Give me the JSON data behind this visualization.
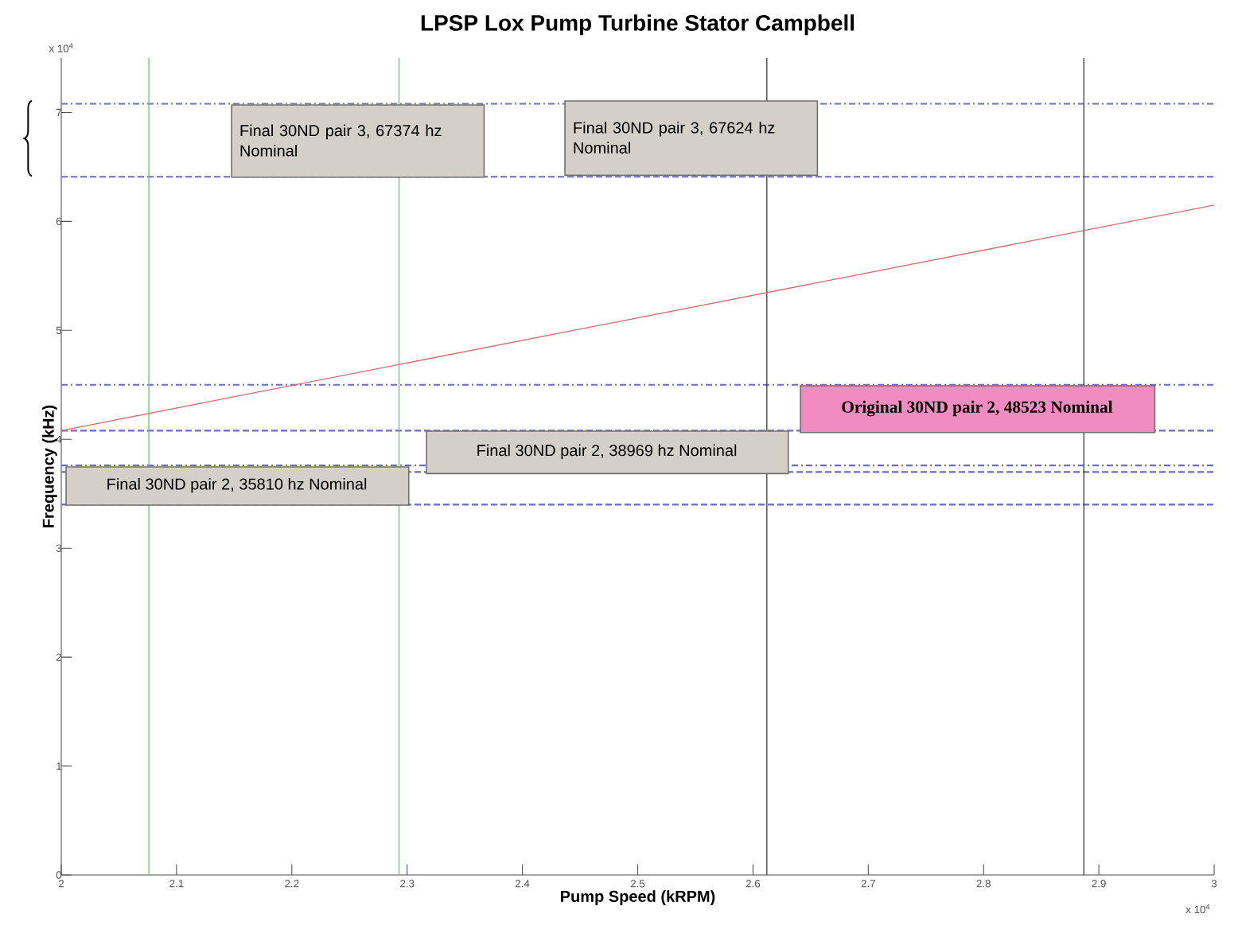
{
  "chart_data": {
    "type": "line",
    "title": "LPSP Lox Pump Turbine Stator Campbell",
    "xlabel": "Pump Speed (kRPM)",
    "ylabel": "Frequency (kHz)",
    "series": [
      {
        "x": [
          2,
          3
        ],
        "values": [
          4.08,
          6.15
        ],
        "color": "#d46a6a"
      }
    ],
    "xlim": [
      2,
      3
    ],
    "ylim": [
      0,
      7.5
    ],
    "xticks": [
      2,
      2.1,
      2.2,
      2.3,
      2.4,
      2.5,
      2.6,
      2.7,
      2.8,
      2.9,
      3
    ],
    "yticks": [
      0,
      1,
      2,
      3,
      4,
      5,
      6,
      7
    ],
    "ref_lines": [
      {
        "axis": "y",
        "value": 7.08,
        "color": "#6b6bcc",
        "line_style": "dashdot"
      },
      {
        "axis": "y",
        "value": 6.41,
        "color": "#6b6bcc",
        "line_style": "dashed"
      },
      {
        "axis": "y",
        "value": 4.5,
        "color": "#6b6bcc",
        "line_style": "dashdot"
      },
      {
        "axis": "y",
        "value": 4.08,
        "color": "#6b6bcc",
        "line_style": "dashed"
      },
      {
        "axis": "y",
        "value": 3.76,
        "color": "#6b6bcc",
        "line_style": "dashdot"
      },
      {
        "axis": "y",
        "value": 3.7,
        "color": "#6b6bcc",
        "line_style": "dashed"
      },
      {
        "axis": "y",
        "value": 3.4,
        "color": "#6b6bcc",
        "line_style": "dashed"
      },
      {
        "axis": "x",
        "value": 2.076,
        "color": "#66cc66",
        "line_style": "solid"
      },
      {
        "axis": "x",
        "value": 2.293,
        "color": "#66cc66",
        "line_style": "solid"
      },
      {
        "axis": "x",
        "value": 2.612,
        "color": "#404040",
        "line_style": "solid"
      },
      {
        "axis": "x",
        "value": 2.887,
        "color": "#404040",
        "line_style": "solid"
      }
    ],
    "annotations": [
      "x 10$^{4}$",
      "x 10$^{4}$",
      "Final 30ND pair 3, 67374 hz Nominal",
      "Final 30ND pair 3, 67624 hz Nominal",
      "Original 30ND pair 2, 48523 Nominal",
      "Final 30ND pair 2, 38969 hz Nominal",
      "Final 30ND pair 2, 35810 hz Nominal"
    ]
  }
}
